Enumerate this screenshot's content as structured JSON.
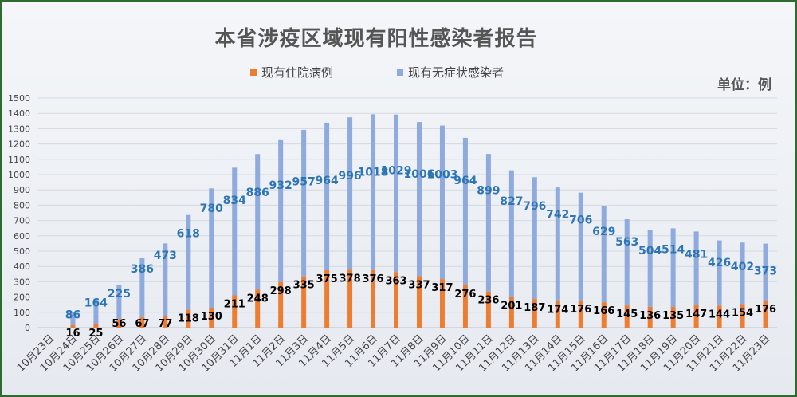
{
  "title": "本省涉疫区域现有阳性感染者报告",
  "unit": "单位：例",
  "colors": {
    "hospitalized": "#ed7d31",
    "asymptomatic": "#8faadc",
    "asym_label": "#2e75b6",
    "hosp_label": "#000000"
  },
  "chart_data": {
    "type": "bar",
    "stacked": true,
    "categories": [
      "10月23日",
      "10月24日",
      "10月25日",
      "10月26日",
      "10月27日",
      "10月28日",
      "10月29日",
      "10月30日",
      "10月31日",
      "11月1日",
      "11月2日",
      "11月3日",
      "11月4日",
      "11月5日",
      "11月6日",
      "11月7日",
      "11月8日",
      "11月9日",
      "11月10日",
      "11月11日",
      "11月12日",
      "11月13日",
      "11月14日",
      "11月15日",
      "11月16日",
      "11月17日",
      "11月18日",
      "11月19日",
      "11月20日",
      "11月21日",
      "11月22日",
      "11月23日"
    ],
    "series": [
      {
        "name": "现有住院病例",
        "values": [
          null,
          16,
          25,
          56,
          67,
          77,
          118,
          130,
          211,
          248,
          298,
          335,
          375,
          378,
          376,
          363,
          337,
          317,
          276,
          236,
          201,
          187,
          174,
          176,
          166,
          145,
          136,
          135,
          147,
          144,
          154,
          176
        ]
      },
      {
        "name": "现有无症状感染者",
        "values": [
          null,
          86,
          164,
          225,
          386,
          473,
          618,
          780,
          834,
          886,
          932,
          957,
          964,
          996,
          1018,
          1029,
          1006,
          1003,
          964,
          899,
          827,
          796,
          742,
          706,
          629,
          563,
          504,
          514,
          481,
          426,
          402,
          373
        ]
      }
    ],
    "ylim": [
      0,
      1500
    ],
    "yticks": [
      0,
      100,
      200,
      300,
      400,
      500,
      600,
      700,
      800,
      900,
      1000,
      1100,
      1200,
      1300,
      1400,
      1500
    ],
    "grid": true,
    "legend": "top"
  }
}
